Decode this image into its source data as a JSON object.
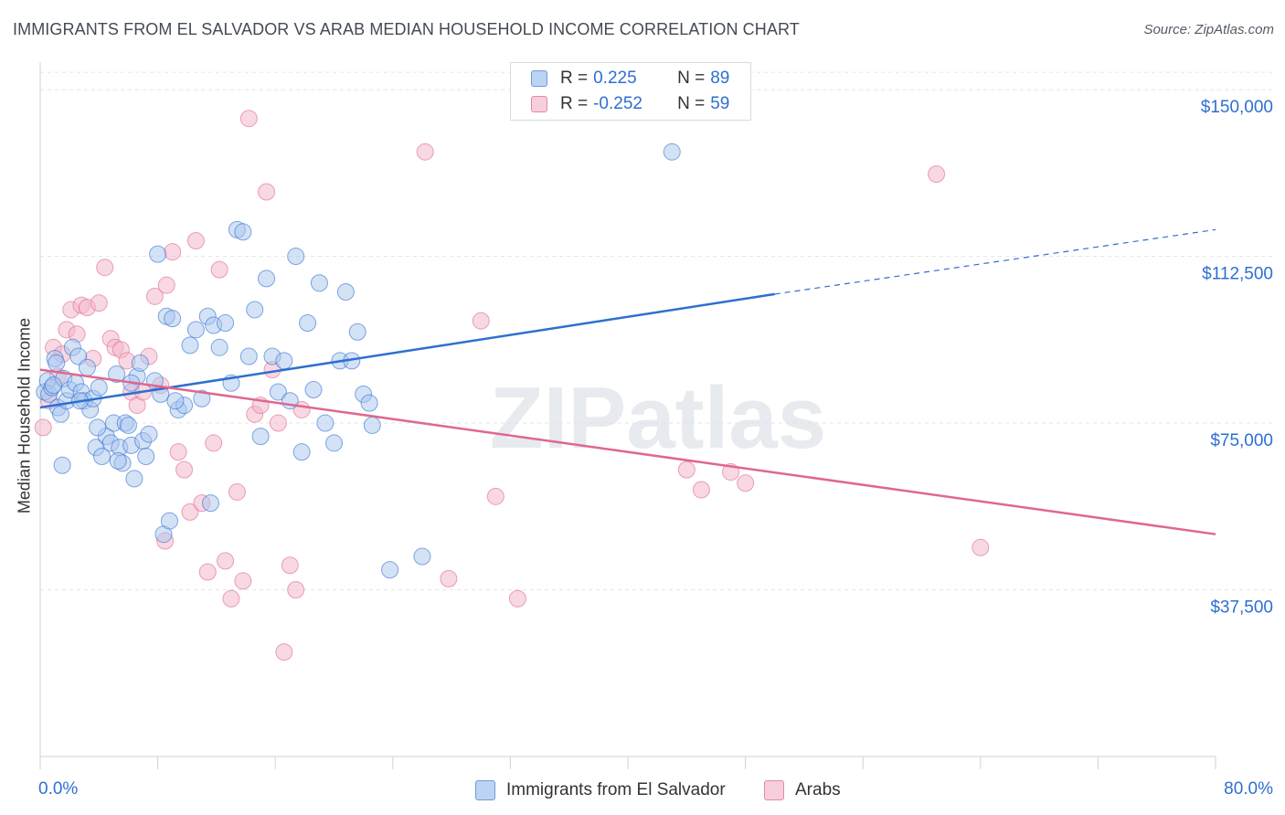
{
  "title": "IMMIGRANTS FROM EL SALVADOR VS ARAB MEDIAN HOUSEHOLD INCOME CORRELATION CHART",
  "source": "Source: ZipAtlas.com",
  "colors": {
    "blue": "#2e6fd1",
    "blue_fill": "#a9c6ee",
    "pink": "#e0678f",
    "pink_fill": "#f2b8cb",
    "grid": "#e3e5ea",
    "tick_label": "#2e6fd1"
  },
  "legend": {
    "rows": [
      {
        "r_label": "R =",
        "r_value": "0.225",
        "n_label": "N =",
        "n_value": "89"
      },
      {
        "r_label": "R =",
        "r_value": "-0.252",
        "n_label": "N =",
        "n_value": "59"
      }
    ]
  },
  "chart_data": {
    "type": "scatter",
    "title": "IMMIGRANTS FROM EL SALVADOR VS ARAB MEDIAN HOUSEHOLD INCOME CORRELATION CHART",
    "xlabel": "",
    "ylabel": "Median Household Income",
    "xlim": [
      0,
      80
    ],
    "ylim": [
      0,
      157000
    ],
    "x_tick_labels": [
      "0.0%",
      "80.0%"
    ],
    "y_tick_labels": [
      "$37,500",
      "$75,000",
      "$112,500",
      "$150,000"
    ],
    "y_tick_values": [
      37500,
      75000,
      112500,
      150000
    ],
    "grid": true,
    "legend_position": "bottom",
    "watermark": "ZIPatlas",
    "series": [
      {
        "name": "Immigrants from El Salvador",
        "color": "#2e6fd1",
        "trend": {
          "x": [
            0,
            50
          ],
          "y": [
            78500,
            104000
          ],
          "dashed_to": [
            80,
            118500
          ]
        },
        "points": [
          [
            0.3,
            82000
          ],
          [
            0.5,
            84500
          ],
          [
            0.6,
            81500
          ],
          [
            0.8,
            83000
          ],
          [
            1.0,
            89500
          ],
          [
            1.2,
            78500
          ],
          [
            1.4,
            77000
          ],
          [
            1.6,
            85000
          ],
          [
            1.8,
            80000
          ],
          [
            2.0,
            82500
          ],
          [
            2.2,
            92000
          ],
          [
            2.4,
            84000
          ],
          [
            2.6,
            90000
          ],
          [
            2.8,
            82000
          ],
          [
            3.0,
            80000
          ],
          [
            3.2,
            87500
          ],
          [
            3.4,
            78000
          ],
          [
            3.6,
            80500
          ],
          [
            3.8,
            69500
          ],
          [
            4.0,
            83000
          ],
          [
            4.2,
            67500
          ],
          [
            4.5,
            72000
          ],
          [
            4.8,
            70500
          ],
          [
            5.0,
            75000
          ],
          [
            5.2,
            86000
          ],
          [
            5.4,
            69500
          ],
          [
            5.6,
            66000
          ],
          [
            5.8,
            75000
          ],
          [
            6.0,
            74500
          ],
          [
            6.2,
            70000
          ],
          [
            6.4,
            62500
          ],
          [
            6.6,
            85500
          ],
          [
            6.8,
            88500
          ],
          [
            7.0,
            71000
          ],
          [
            7.2,
            67500
          ],
          [
            7.4,
            72500
          ],
          [
            7.8,
            84500
          ],
          [
            8.2,
            81500
          ],
          [
            8.6,
            99000
          ],
          [
            9.0,
            98500
          ],
          [
            9.4,
            78000
          ],
          [
            9.8,
            79000
          ],
          [
            10.2,
            92500
          ],
          [
            10.6,
            96000
          ],
          [
            11.0,
            80500
          ],
          [
            11.4,
            99000
          ],
          [
            11.8,
            97000
          ],
          [
            12.2,
            92000
          ],
          [
            12.6,
            97500
          ],
          [
            13.0,
            84000
          ],
          [
            13.4,
            118500
          ],
          [
            13.8,
            118000
          ],
          [
            14.2,
            90000
          ],
          [
            14.6,
            100500
          ],
          [
            15.0,
            72000
          ],
          [
            15.4,
            107500
          ],
          [
            15.8,
            90000
          ],
          [
            16.2,
            82000
          ],
          [
            16.6,
            89000
          ],
          [
            17.0,
            80000
          ],
          [
            17.4,
            112500
          ],
          [
            17.8,
            68500
          ],
          [
            18.2,
            97500
          ],
          [
            18.6,
            82500
          ],
          [
            19.0,
            106500
          ],
          [
            19.4,
            75000
          ],
          [
            20.0,
            70500
          ],
          [
            20.4,
            89000
          ],
          [
            20.8,
            104500
          ],
          [
            21.2,
            89000
          ],
          [
            21.6,
            95500
          ],
          [
            22.0,
            81500
          ],
          [
            22.4,
            79500
          ],
          [
            22.6,
            74500
          ],
          [
            8.0,
            113000
          ],
          [
            8.4,
            50000
          ],
          [
            8.8,
            53000
          ],
          [
            11.6,
            57000
          ],
          [
            23.8,
            42000
          ],
          [
            26.0,
            45000
          ],
          [
            43.0,
            136000
          ],
          [
            1.5,
            65500
          ],
          [
            2.7,
            80000
          ],
          [
            3.9,
            74000
          ],
          [
            5.3,
            66500
          ],
          [
            9.2,
            80000
          ],
          [
            6.2,
            84000
          ],
          [
            1.1,
            88500
          ],
          [
            0.9,
            83500
          ]
        ]
      },
      {
        "name": "Arabs",
        "color": "#e0678f",
        "trend": {
          "x": [
            0,
            80
          ],
          "y": [
            87000,
            50000
          ]
        },
        "points": [
          [
            0.2,
            74000
          ],
          [
            0.6,
            80000
          ],
          [
            0.9,
            92000
          ],
          [
            1.2,
            85500
          ],
          [
            1.5,
            90500
          ],
          [
            1.8,
            96000
          ],
          [
            2.1,
            100500
          ],
          [
            2.5,
            95000
          ],
          [
            2.8,
            101500
          ],
          [
            3.2,
            101000
          ],
          [
            3.6,
            89500
          ],
          [
            4.0,
            102000
          ],
          [
            4.4,
            110000
          ],
          [
            4.8,
            94000
          ],
          [
            5.1,
            92000
          ],
          [
            5.5,
            91500
          ],
          [
            5.9,
            89000
          ],
          [
            6.2,
            82000
          ],
          [
            6.6,
            79000
          ],
          [
            7.0,
            82000
          ],
          [
            7.4,
            90000
          ],
          [
            7.8,
            103500
          ],
          [
            8.2,
            83500
          ],
          [
            8.6,
            106000
          ],
          [
            9.0,
            113500
          ],
          [
            9.4,
            68500
          ],
          [
            9.8,
            64500
          ],
          [
            10.2,
            55000
          ],
          [
            10.6,
            116000
          ],
          [
            11.0,
            57000
          ],
          [
            11.4,
            41500
          ],
          [
            11.8,
            70500
          ],
          [
            12.2,
            109500
          ],
          [
            12.6,
            44000
          ],
          [
            13.0,
            35500
          ],
          [
            13.4,
            59500
          ],
          [
            13.8,
            39500
          ],
          [
            14.2,
            143500
          ],
          [
            14.6,
            77000
          ],
          [
            15.0,
            79000
          ],
          [
            15.4,
            127000
          ],
          [
            15.8,
            87000
          ],
          [
            16.2,
            75000
          ],
          [
            16.6,
            23500
          ],
          [
            17.0,
            43000
          ],
          [
            17.4,
            37500
          ],
          [
            17.8,
            78000
          ],
          [
            26.2,
            136000
          ],
          [
            27.8,
            40000
          ],
          [
            30.0,
            98000
          ],
          [
            31.0,
            58500
          ],
          [
            32.5,
            35500
          ],
          [
            44.0,
            64500
          ],
          [
            45.0,
            60000
          ],
          [
            47.0,
            64000
          ],
          [
            48.0,
            61500
          ],
          [
            61.0,
            131000
          ],
          [
            64.0,
            47000
          ],
          [
            8.5,
            48500
          ]
        ]
      }
    ]
  },
  "bottom_legend": [
    "Immigrants from El Salvador",
    "Arabs"
  ]
}
